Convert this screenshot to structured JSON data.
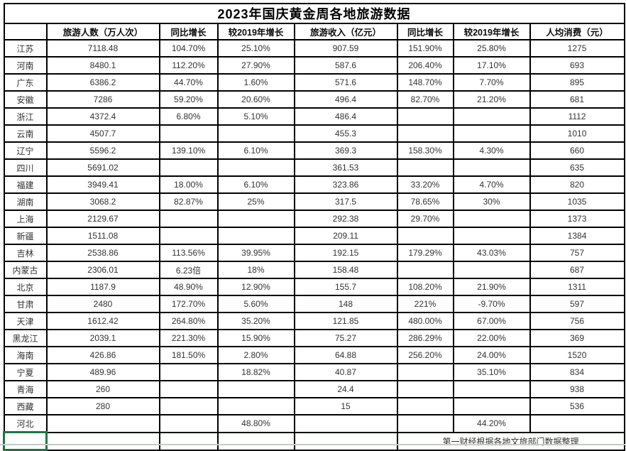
{
  "title": "2023年国庆黄金周各地旅游数据",
  "footer_note": "第一财经根据各地文旅部门数据整理",
  "colors": {
    "table_border": "#000000",
    "active_cell_border": "#217346",
    "text": "#333333",
    "background": "#ffffff"
  },
  "table": {
    "headers": [
      "",
      "旅游人数（万人次）",
      "同比增长",
      "较2019年增长",
      "旅游收入（亿元）",
      "同比增长",
      "较2019年增长",
      "人均消费（元）"
    ],
    "rows": [
      [
        "江苏",
        "7118.48",
        "104.70%",
        "25.10%",
        "907.59",
        "151.90%",
        "25.80%",
        "1275"
      ],
      [
        "河南",
        "8480.1",
        "112.20%",
        "27.90%",
        "587.6",
        "206.40%",
        "17.10%",
        "693"
      ],
      [
        "广东",
        "6386.2",
        "44.70%",
        "1.60%",
        "571.6",
        "148.70%",
        "7.70%",
        "895"
      ],
      [
        "安徽",
        "7286",
        "59.20%",
        "20.60%",
        "496.4",
        "82.70%",
        "21.20%",
        "681"
      ],
      [
        "浙江",
        "4372.4",
        "6.80%",
        "5.10%",
        "486.4",
        "",
        "",
        "1112"
      ],
      [
        "云南",
        "4507.7",
        "",
        "",
        "455.3",
        "",
        "",
        "1010"
      ],
      [
        "辽宁",
        "5596.2",
        "139.10%",
        "6.10%",
        "369.3",
        "158.30%",
        "4.30%",
        "660"
      ],
      [
        "四川",
        "5691.02",
        "",
        "",
        "361.53",
        "",
        "",
        "635"
      ],
      [
        "福建",
        "3949.41",
        "18.00%",
        "6.10%",
        "323.86",
        "33.20%",
        "4.70%",
        "820"
      ],
      [
        "湖南",
        "3068.2",
        "82.87%",
        "25%",
        "317.5",
        "78.65%",
        "30%",
        "1035"
      ],
      [
        "上海",
        "2129.67",
        "",
        "",
        "292.38",
        "29.70%",
        "",
        "1373"
      ],
      [
        "新疆",
        "1511.08",
        "",
        "",
        "209.11",
        "",
        "",
        "1384"
      ],
      [
        "吉林",
        "2538.86",
        "113.56%",
        "39.95%",
        "192.15",
        "179.29%",
        "43.03%",
        "757"
      ],
      [
        "内蒙古",
        "2306.01",
        "6.23倍",
        "18%",
        "158.48",
        "",
        "",
        "687"
      ],
      [
        "北京",
        "1187.9",
        "48.90%",
        "12.90%",
        "155.7",
        "108.20%",
        "21.90%",
        "1311"
      ],
      [
        "甘肃",
        "2480",
        "172.70%",
        "5.60%",
        "148",
        "221%",
        "-9.70%",
        "597"
      ],
      [
        "天津",
        "1612.42",
        "264.80%",
        "35.20%",
        "121.85",
        "480.00%",
        "67.00%",
        "756"
      ],
      [
        "黑龙江",
        "2039.1",
        "221.30%",
        "15.90%",
        "75.27",
        "286.29%",
        "22.00%",
        "369"
      ],
      [
        "海南",
        "426.86",
        "181.50%",
        "2.80%",
        "64.88",
        "256.20%",
        "24.00%",
        "1520"
      ],
      [
        "宁夏",
        "489.96",
        "",
        "18.82%",
        "40.87",
        "",
        "35.10%",
        "834"
      ],
      [
        "青海",
        "260",
        "",
        "",
        "24.4",
        "",
        "",
        "938"
      ],
      [
        "西藏",
        "280",
        "",
        "",
        "15",
        "",
        "",
        "536"
      ],
      [
        "河北",
        "",
        "",
        "48.80%",
        "",
        "",
        "44.20%",
        ""
      ]
    ]
  }
}
